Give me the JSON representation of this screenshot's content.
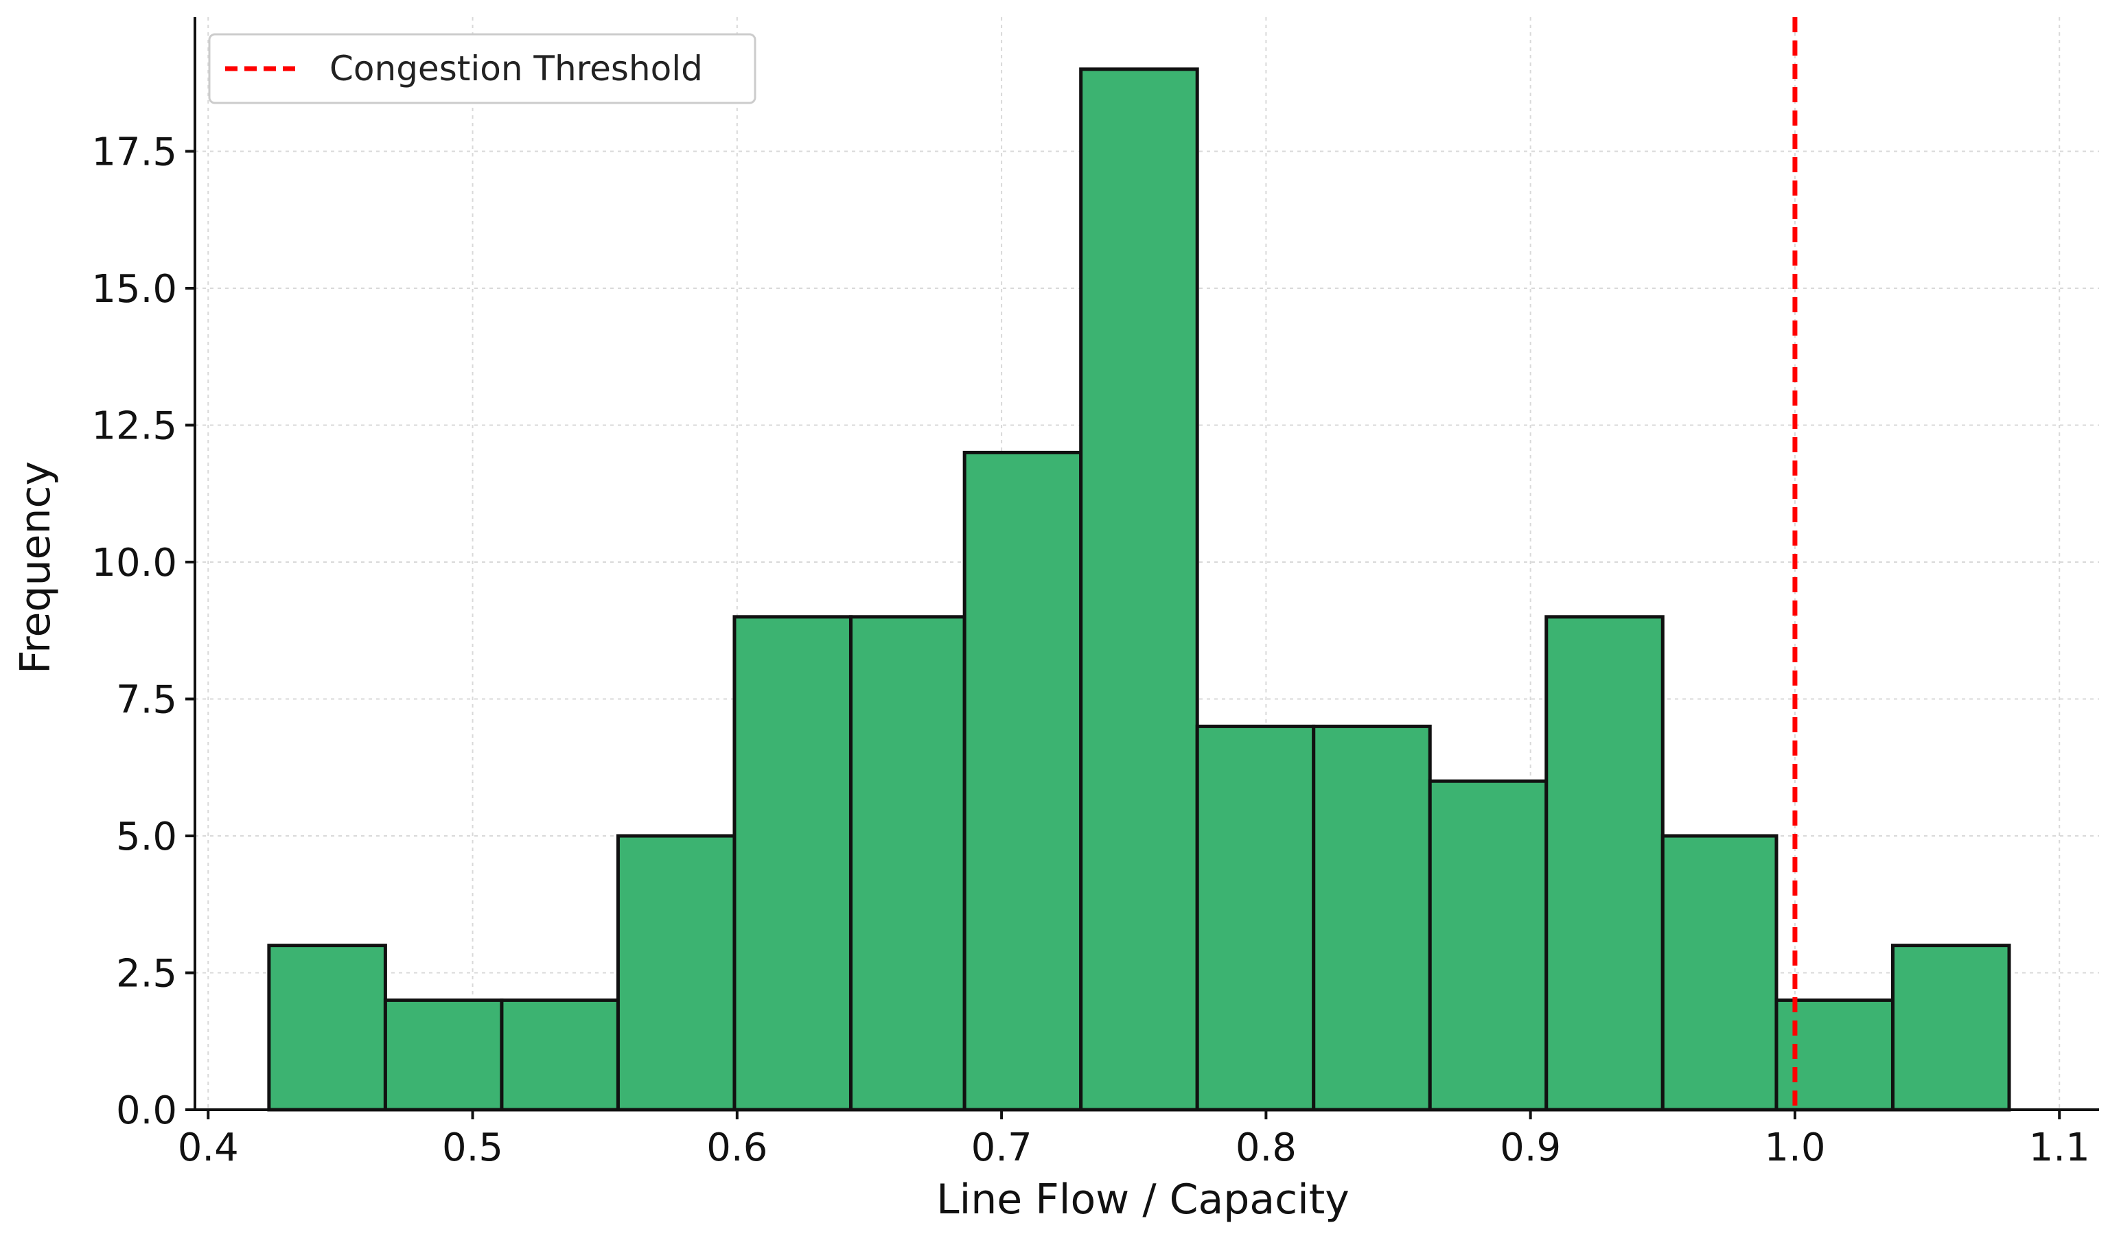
{
  "chart_data": {
    "type": "bar",
    "subtype": "histogram",
    "title": "",
    "xlabel": "Line Flow / Capacity",
    "ylabel": "Frequency",
    "xlim": [
      0.395,
      1.115
    ],
    "ylim": [
      0,
      19.95
    ],
    "xticks": [
      0.4,
      0.5,
      0.6,
      0.7,
      0.8,
      0.9,
      1.0,
      1.1
    ],
    "xtick_labels": [
      "0.4",
      "0.5",
      "0.6",
      "0.7",
      "0.8",
      "0.9",
      "1.0",
      "1.1"
    ],
    "yticks": [
      0,
      2.5,
      5,
      7.5,
      10,
      12.5,
      15,
      17.5
    ],
    "ytick_labels": [
      "0.0",
      "2.5",
      "5.0",
      "7.5",
      "10.0",
      "12.5",
      "15.0",
      "17.5"
    ],
    "bins": [
      {
        "x0": 0.423,
        "x1": 0.467,
        "count": 3
      },
      {
        "x0": 0.467,
        "x1": 0.511,
        "count": 2
      },
      {
        "x0": 0.511,
        "x1": 0.555,
        "count": 2
      },
      {
        "x0": 0.555,
        "x1": 0.599,
        "count": 5
      },
      {
        "x0": 0.599,
        "x1": 0.643,
        "count": 9
      },
      {
        "x0": 0.643,
        "x1": 0.686,
        "count": 9
      },
      {
        "x0": 0.686,
        "x1": 0.73,
        "count": 12
      },
      {
        "x0": 0.73,
        "x1": 0.774,
        "count": 19
      },
      {
        "x0": 0.774,
        "x1": 0.818,
        "count": 7
      },
      {
        "x0": 0.818,
        "x1": 0.862,
        "count": 7
      },
      {
        "x0": 0.862,
        "x1": 0.906,
        "count": 6
      },
      {
        "x0": 0.906,
        "x1": 0.95,
        "count": 9
      },
      {
        "x0": 0.95,
        "x1": 0.993,
        "count": 5
      },
      {
        "x0": 0.993,
        "x1": 1.037,
        "count": 2
      },
      {
        "x0": 1.037,
        "x1": 1.081,
        "count": 3
      }
    ],
    "threshold": {
      "name": "Congestion Threshold",
      "x": 1.0,
      "style": "dashed",
      "color": "#ff0000"
    },
    "bar_color": "#3cb371",
    "edge_color": "#111111",
    "grid": true,
    "legend": {
      "position": "top-left",
      "entries": [
        "Congestion Threshold"
      ]
    }
  }
}
